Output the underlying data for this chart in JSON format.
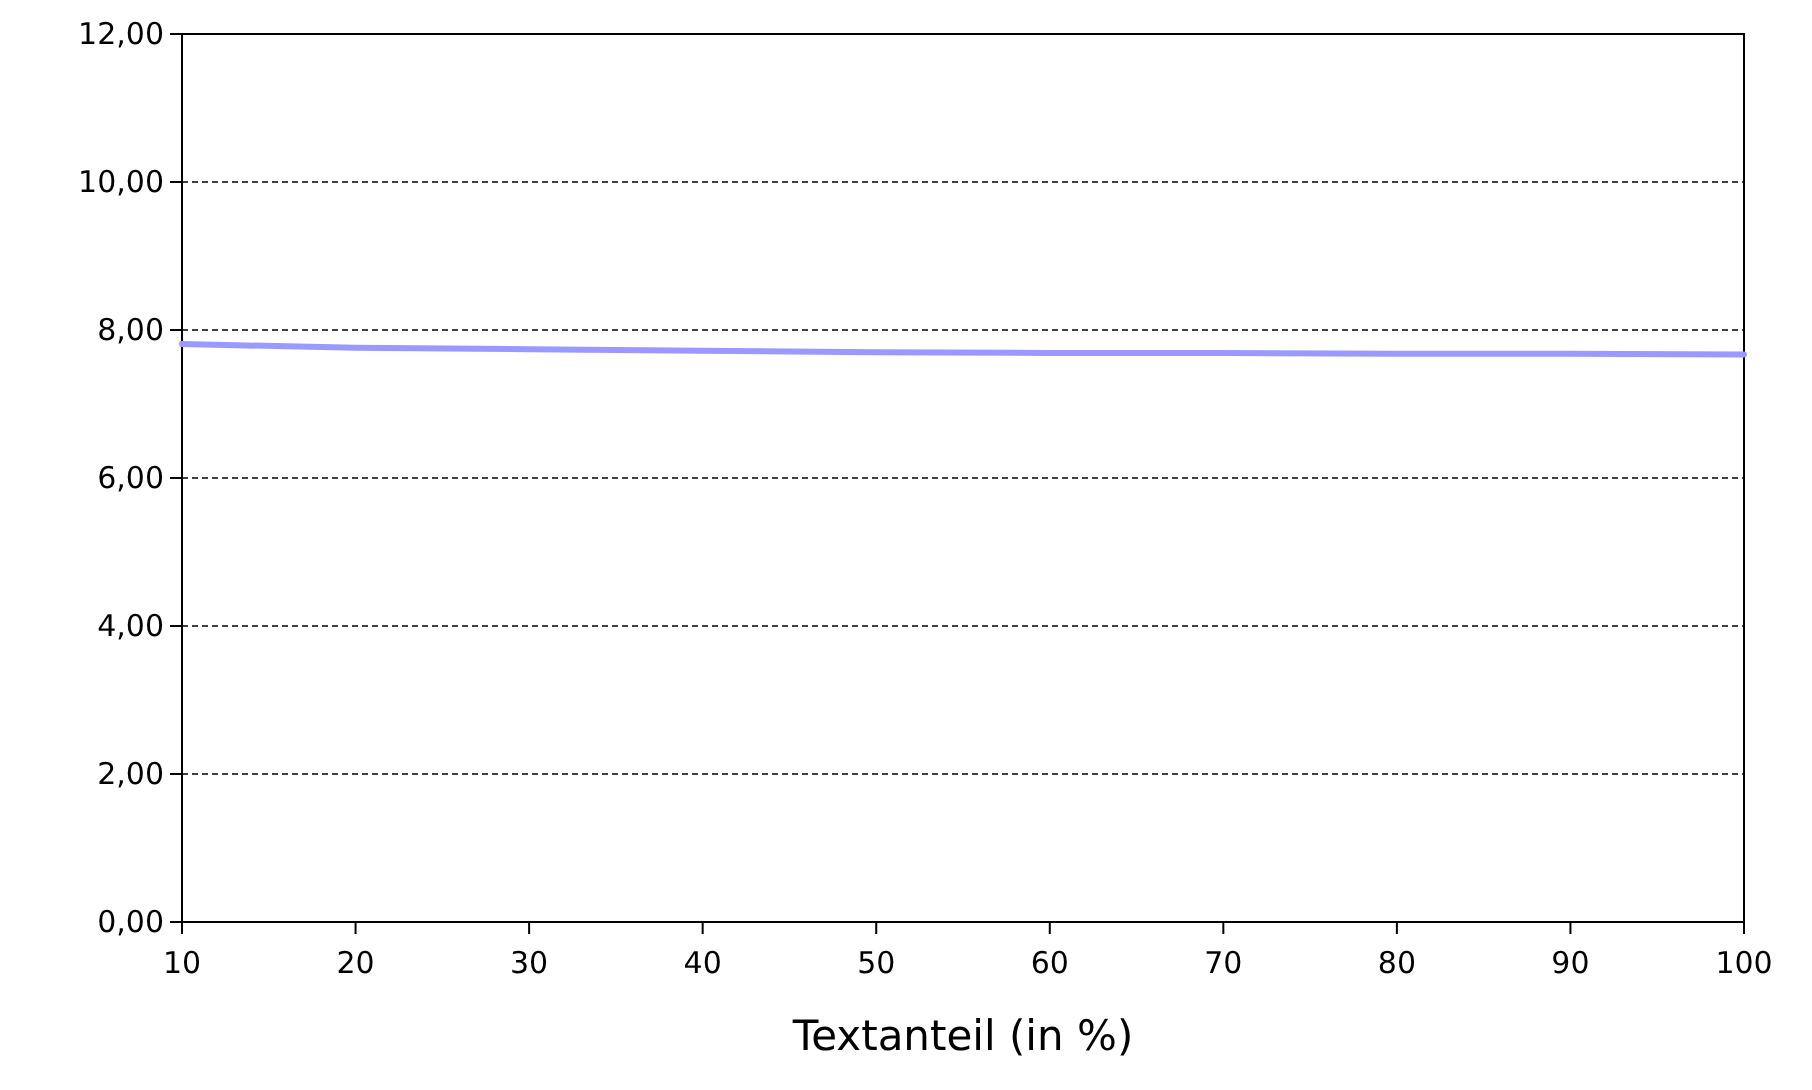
{
  "chart_data": {
    "type": "line",
    "xlabel": "Textanteil (in %)",
    "x": [
      10,
      20,
      30,
      40,
      50,
      60,
      70,
      80,
      90,
      100
    ],
    "series": [
      {
        "color": "#9999ff",
        "values": [
          7.81,
          7.76,
          7.74,
          7.72,
          7.7,
          7.69,
          7.69,
          7.68,
          7.68,
          7.67
        ]
      }
    ],
    "xlim": [
      10,
      100
    ],
    "xticks": [
      10,
      20,
      30,
      40,
      50,
      60,
      70,
      80,
      90,
      100
    ],
    "ylim": [
      0,
      12
    ],
    "yticks": [
      {
        "value": 0,
        "label": "0,00"
      },
      {
        "value": 2,
        "label": "2,00"
      },
      {
        "value": 4,
        "label": "4,00"
      },
      {
        "value": 6,
        "label": "6,00"
      },
      {
        "value": 8,
        "label": "8,00"
      },
      {
        "value": 10,
        "label": "10,00"
      },
      {
        "value": 12,
        "label": "12,00"
      }
    ],
    "grid": "y",
    "marker": "none",
    "line_style": "solid"
  }
}
